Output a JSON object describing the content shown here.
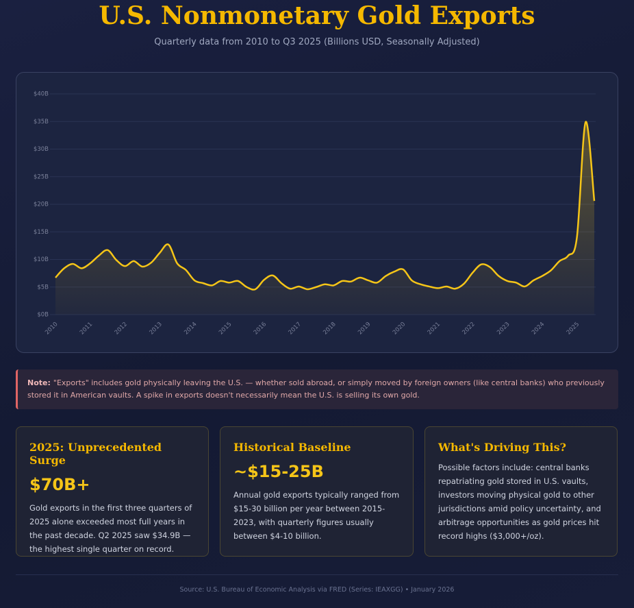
{
  "chart_data": {
    "type": "line",
    "title": "U.S. Nonmonetary Gold Exports",
    "subtitle": "Quarterly data from 2010 to Q3 2025 (Billions USD, Seasonally Adjusted)",
    "categories": [
      "2010",
      null,
      null,
      null,
      "2011",
      null,
      null,
      null,
      "2012",
      null,
      null,
      null,
      "2013",
      null,
      null,
      null,
      "2014",
      null,
      null,
      null,
      "2015",
      null,
      null,
      null,
      "2016",
      null,
      null,
      null,
      "2017",
      null,
      null,
      null,
      "2018",
      null,
      null,
      null,
      "2019",
      null,
      null,
      null,
      "2020",
      null,
      null,
      null,
      "2021",
      null,
      null,
      null,
      "2022",
      null,
      null,
      null,
      "2023",
      null,
      null,
      null,
      "2024",
      null,
      null,
      null,
      "2025",
      null,
      null
    ],
    "values": [
      6.7,
      8.4,
      9.2,
      8.4,
      9.3,
      10.7,
      11.7,
      9.9,
      8.8,
      9.7,
      8.7,
      9.4,
      11.2,
      12.7,
      9.3,
      8.1,
      6.2,
      5.7,
      5.3,
      6.1,
      5.8,
      6.1,
      5.0,
      4.6,
      6.3,
      7.1,
      5.7,
      4.7,
      5.1,
      4.6,
      5.0,
      5.5,
      5.3,
      6.1,
      6.0,
      6.7,
      6.2,
      5.8,
      7.0,
      7.8,
      8.2,
      6.2,
      5.5,
      5.1,
      4.8,
      5.1,
      4.7,
      5.6,
      7.6,
      9.1,
      8.6,
      7.0,
      6.1,
      5.8,
      5.1,
      6.2,
      7.0,
      8.0,
      9.7,
      10.7,
      14.0,
      34.9,
      20.6
    ],
    "color": "#f5c518",
    "ylim": [
      0,
      40
    ],
    "yticks": [
      {
        "value": 0,
        "label": "$0B"
      },
      {
        "value": 5,
        "label": "$5B"
      },
      {
        "value": 10,
        "label": "$10B"
      },
      {
        "value": 15,
        "label": "$15B"
      },
      {
        "value": 20,
        "label": "$20B"
      },
      {
        "value": 25,
        "label": "$25B"
      },
      {
        "value": 30,
        "label": "$30B"
      },
      {
        "value": 35,
        "label": "$35B"
      },
      {
        "value": 40,
        "label": "$40B"
      }
    ],
    "grid": true
  },
  "note": {
    "label": "Note:",
    "text": "\"Exports\" includes gold physically leaving the U.S. — whether sold abroad, or simply moved by foreign owners (like central banks) who previously stored it in American vaults. A spike in exports doesn't necessarily mean the U.S. is selling its own gold."
  },
  "cards": [
    {
      "title": "2025: Unprecedented Surge",
      "value": "$70B+",
      "body": "Gold exports in the first three quarters of 2025 alone exceeded most full years in the past decade. Q2 2025 saw $34.9B — the highest single quarter on record."
    },
    {
      "title": "Historical Baseline",
      "value": "~$15-25B",
      "body": "Annual gold exports typically ranged from $15-30 billion per year between 2015-2023, with quarterly figures usually between $4-10 billion."
    },
    {
      "title": "What's Driving This?",
      "body": "Possible factors include: central banks repatriating gold stored in U.S. vaults, investors moving physical gold to other jurisdictions amid policy uncertainty, and arbitrage opportunities as gold prices hit record highs ($3,000+/oz)."
    }
  ],
  "footer": "Source: U.S. Bureau of Economic Analysis via FRED (Series: IEAXGG) • January 2026"
}
